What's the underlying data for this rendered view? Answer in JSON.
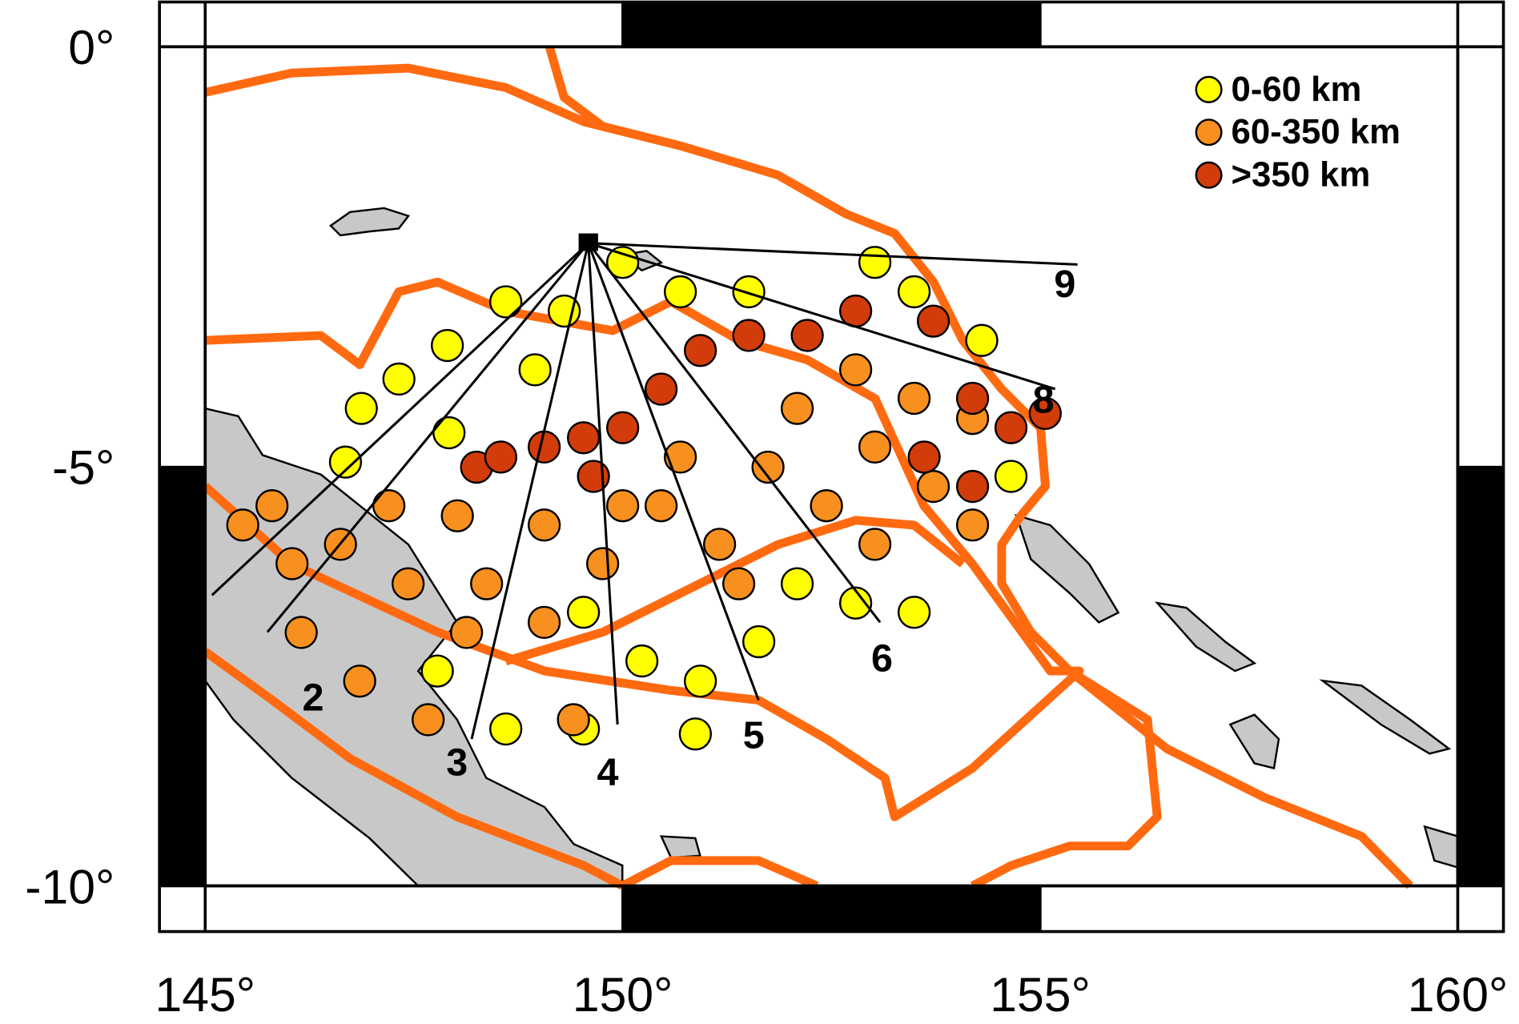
{
  "map": {
    "xlim": [
      145,
      160
    ],
    "ylim": [
      -10,
      0
    ],
    "xticks": [
      {
        "value": 145,
        "label": "145°"
      },
      {
        "value": 150,
        "label": "150°"
      },
      {
        "value": 155,
        "label": "155°"
      },
      {
        "value": 160,
        "label": "160°"
      }
    ],
    "yticks": [
      {
        "value": 0,
        "label": "0°"
      },
      {
        "value": -5,
        "label": "-5°"
      },
      {
        "value": -10,
        "label": "-10°"
      }
    ],
    "legend": [
      {
        "label": "0-60 km",
        "color": "#ffff00",
        "points": [
          [
            147.9,
            -3.56
          ],
          [
            146.87,
            -4.31
          ],
          [
            147.32,
            -3.96
          ],
          [
            147.92,
            -4.6
          ],
          [
            148.6,
            -3.04
          ],
          [
            149.3,
            -3.15
          ],
          [
            150.0,
            -2.57
          ],
          [
            150.69,
            -2.92
          ],
          [
            151.51,
            -2.92
          ],
          [
            153.02,
            -2.57
          ],
          [
            153.49,
            -2.92
          ],
          [
            154.3,
            -3.5
          ],
          [
            152.09,
            -6.4
          ],
          [
            152.79,
            -6.63
          ],
          [
            153.49,
            -6.74
          ],
          [
            149.53,
            -6.74
          ],
          [
            150.23,
            -7.32
          ],
          [
            150.93,
            -7.56
          ],
          [
            148.6,
            -8.13
          ],
          [
            149.53,
            -8.13
          ],
          [
            150.87,
            -8.19
          ],
          [
            147.78,
            -7.44
          ],
          [
            151.63,
            -7.09
          ],
          [
            148.95,
            -3.85
          ],
          [
            146.68,
            -4.95
          ],
          [
            154.65,
            -5.12
          ]
        ]
      },
      {
        "label": "60-350 km",
        "color": "#f7901e",
        "points": [
          [
            145.45,
            -5.7
          ],
          [
            146.04,
            -6.16
          ],
          [
            145.8,
            -5.47
          ],
          [
            146.62,
            -5.93
          ],
          [
            147.2,
            -5.47
          ],
          [
            147.43,
            -6.4
          ],
          [
            148.02,
            -5.59
          ],
          [
            148.37,
            -6.4
          ],
          [
            149.06,
            -5.7
          ],
          [
            149.76,
            -6.16
          ],
          [
            150.46,
            -5.47
          ],
          [
            151.16,
            -5.93
          ],
          [
            151.74,
            -5.01
          ],
          [
            152.44,
            -5.47
          ],
          [
            153.02,
            -4.77
          ],
          [
            153.72,
            -5.24
          ],
          [
            154.19,
            -4.43
          ],
          [
            153.49,
            -4.19
          ],
          [
            152.09,
            -4.31
          ],
          [
            152.79,
            -3.85
          ],
          [
            150.69,
            -4.89
          ],
          [
            150.0,
            -5.47
          ],
          [
            146.15,
            -6.98
          ],
          [
            146.85,
            -7.56
          ],
          [
            147.67,
            -8.02
          ],
          [
            149.41,
            -8.02
          ],
          [
            148.13,
            -6.98
          ],
          [
            149.06,
            -6.86
          ],
          [
            151.39,
            -6.4
          ],
          [
            154.19,
            -5.7
          ],
          [
            153.02,
            -5.93
          ]
        ]
      },
      {
        "label": ">350 km",
        "color": "#d23c0a",
        "points": [
          [
            148.25,
            -5.01
          ],
          [
            148.54,
            -4.89
          ],
          [
            149.06,
            -4.77
          ],
          [
            149.53,
            -4.66
          ],
          [
            150.0,
            -4.54
          ],
          [
            149.65,
            -5.12
          ],
          [
            150.46,
            -4.08
          ],
          [
            150.93,
            -3.62
          ],
          [
            151.51,
            -3.44
          ],
          [
            152.21,
            -3.44
          ],
          [
            152.79,
            -3.15
          ],
          [
            153.72,
            -3.27
          ],
          [
            154.19,
            -4.19
          ],
          [
            154.65,
            -4.54
          ],
          [
            155.06,
            -4.37
          ],
          [
            153.61,
            -4.89
          ],
          [
            154.19,
            -5.24
          ]
        ]
      }
    ],
    "profiles": [
      "2",
      "3",
      "4",
      "5",
      "6",
      "8",
      "9"
    ]
  }
}
